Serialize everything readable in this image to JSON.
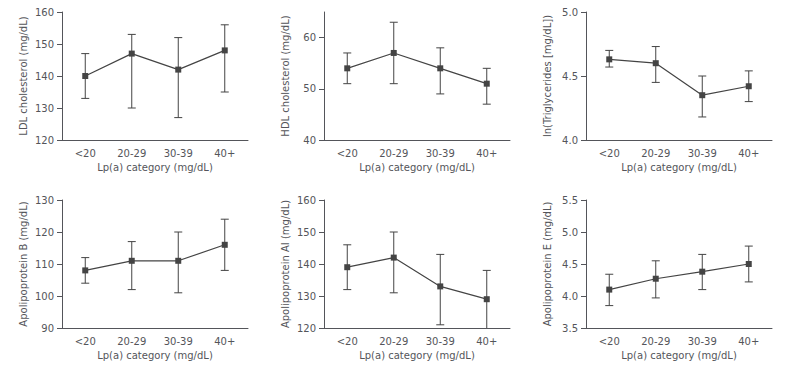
{
  "chart_data": [
    {
      "type": "line",
      "xlabel": "Lp(a) category (mg/dL)",
      "ylabel": "LDL cholesterol (mg/dL)",
      "categories": [
        "<20",
        "20-29",
        "30-39",
        "40+"
      ],
      "values": [
        140,
        147,
        142,
        148
      ],
      "ci_low": [
        133,
        130,
        127,
        135
      ],
      "ci_high": [
        147,
        153,
        152,
        156
      ],
      "ylim": [
        120,
        160
      ],
      "yticks": [
        120,
        130,
        140,
        150,
        160
      ],
      "color": "#444444",
      "marker": "square",
      "grid": false
    },
    {
      "type": "line",
      "xlabel": "Lp(a) category (mg/dL)",
      "ylabel": "HDL cholesterol (mg/dL)",
      "categories": [
        "<20",
        "20-29",
        "30-39",
        "40+"
      ],
      "values": [
        54,
        57,
        54,
        51
      ],
      "ci_low": [
        51,
        51,
        49,
        47
      ],
      "ci_high": [
        57,
        63,
        58,
        54
      ],
      "ylim": [
        40,
        65
      ],
      "yticks": [
        40,
        50,
        60
      ],
      "color": "#444444",
      "marker": "square",
      "grid": false
    },
    {
      "type": "line",
      "xlabel": "Lp(a) category (mg/dL)",
      "ylabel": "ln(Triglycerides [mg/dL])",
      "categories": [
        "<20",
        "20-29",
        "30-39",
        "40+"
      ],
      "values": [
        4.63,
        4.6,
        4.35,
        4.42
      ],
      "ci_low": [
        4.57,
        4.45,
        4.18,
        4.3
      ],
      "ci_high": [
        4.7,
        4.73,
        4.5,
        4.54
      ],
      "ylim": [
        4.0,
        5.0
      ],
      "yticks": [
        {
          "value": 4.0,
          "label": "4.0"
        },
        4.5,
        {
          "value": 5.0,
          "label": "5.0"
        }
      ],
      "color": "#444444",
      "marker": "square",
      "grid": false
    },
    {
      "type": "line",
      "xlabel": "Lp(a) category (mg/dL)",
      "ylabel": "Apolipoprotein B (mg/dL)",
      "categories": [
        "<20",
        "20-29",
        "30-39",
        "40+"
      ],
      "values": [
        108,
        111,
        111,
        116
      ],
      "ci_low": [
        104,
        102,
        101,
        108
      ],
      "ci_high": [
        112,
        117,
        120,
        124
      ],
      "ylim": [
        90,
        130
      ],
      "yticks": [
        90,
        100,
        110,
        120,
        130
      ],
      "color": "#444444",
      "marker": "square",
      "grid": false
    },
    {
      "type": "line",
      "xlabel": "Lp(a) category (mg/dL)",
      "ylabel": "Apolipoprotein AI (mg/dL)",
      "categories": [
        "<20",
        "20-29",
        "30-39",
        "40+"
      ],
      "values": [
        139,
        142,
        133,
        129
      ],
      "ci_low": [
        132,
        131,
        121,
        119
      ],
      "ci_high": [
        146,
        150,
        143,
        138
      ],
      "ylim": [
        120,
        160
      ],
      "yticks": [
        120,
        130,
        140,
        150,
        160
      ],
      "color": "#444444",
      "marker": "square",
      "grid": false
    },
    {
      "type": "line",
      "xlabel": "Lp(a) category (mg/dL)",
      "ylabel": "Apolipoprotein E (mg/dL)",
      "categories": [
        "<20",
        "20-29",
        "30-39",
        "40+"
      ],
      "values": [
        4.1,
        4.27,
        4.38,
        4.5
      ],
      "ci_low": [
        3.85,
        3.97,
        4.1,
        4.22
      ],
      "ci_high": [
        4.34,
        4.55,
        4.65,
        4.78
      ],
      "ylim": [
        3.5,
        5.5
      ],
      "yticks": [
        3.5,
        {
          "value": 4.0,
          "label": "4.0"
        },
        4.5,
        {
          "value": 5.0,
          "label": "5.0"
        },
        5.5
      ],
      "color": "#444444",
      "marker": "square",
      "grid": false
    }
  ]
}
